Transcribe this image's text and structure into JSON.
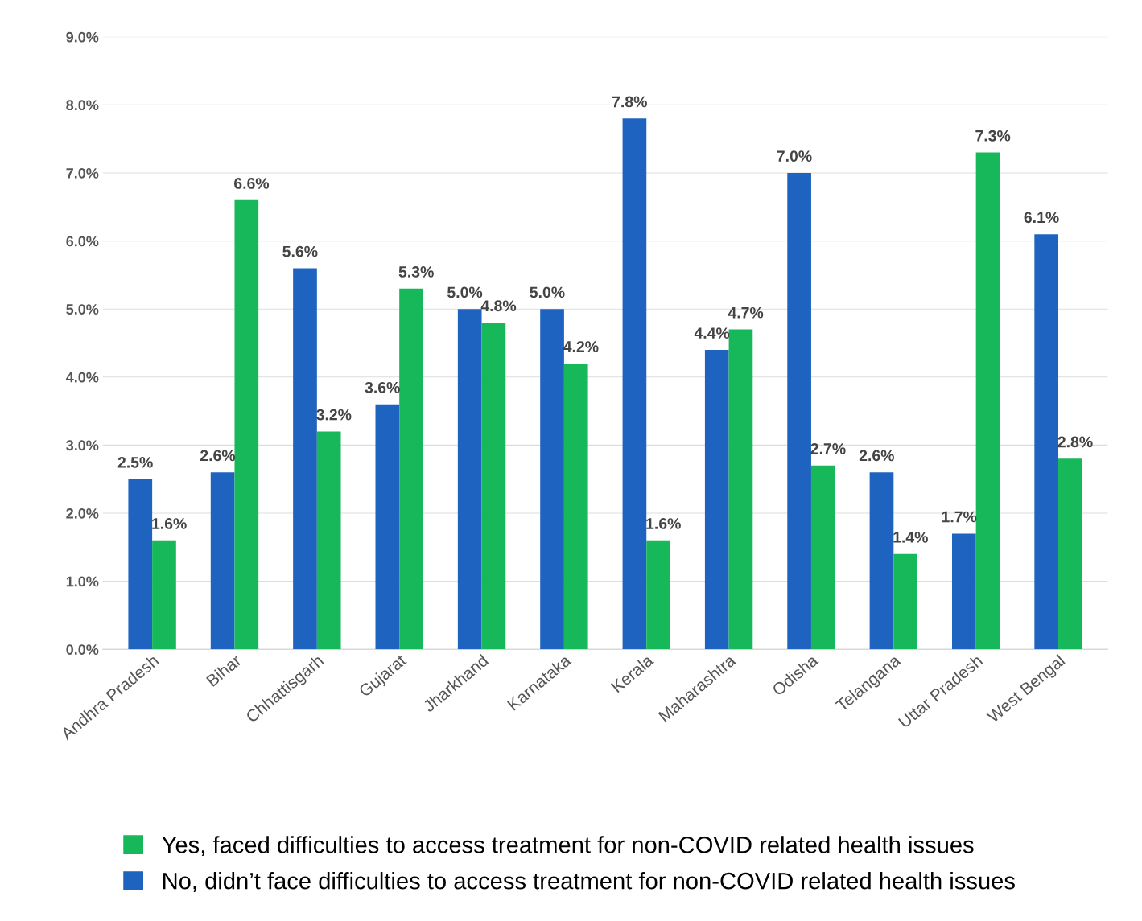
{
  "chart_data": {
    "type": "bar",
    "categories": [
      "Andhra Pradesh",
      "Bihar",
      "Chhattisgarh",
      "Gujarat",
      "Jharkhand",
      "Karnataka",
      "Kerala",
      "Maharashtra",
      "Odisha",
      "Telangana",
      "Uttar Pradesh",
      "West Bengal"
    ],
    "series": [
      {
        "name": "No, didn’t face difficulties to access treatment for non-COVID related health issues",
        "color": "#1f63c0",
        "values": [
          2.5,
          2.6,
          5.6,
          3.6,
          5.0,
          5.0,
          7.8,
          4.4,
          7.0,
          2.6,
          1.7,
          6.1
        ],
        "value_labels": [
          "2.5%",
          "2.6%",
          "5.6%",
          "3.6%",
          "5.0%",
          "5.0%",
          "7.8%",
          "4.4%",
          "7.0%",
          "2.6%",
          "1.7%",
          "6.1%"
        ]
      },
      {
        "name": "Yes, faced difficulties to access treatment for non-COVID related health issues",
        "color": "#16b85a",
        "values": [
          1.6,
          6.6,
          3.2,
          5.3,
          4.8,
          4.2,
          1.6,
          4.7,
          2.7,
          1.4,
          7.3,
          2.8
        ],
        "value_labels": [
          "1.6%",
          "6.6%",
          "3.2%",
          "5.3%",
          "4.8%",
          "4.2%",
          "1.6%",
          "4.7%",
          "2.7%",
          "1.4%",
          "7.3%",
          "2.8%"
        ]
      }
    ],
    "ylim": [
      0,
      9
    ],
    "yticks": [
      {
        "value": 0,
        "label": "0.0%"
      },
      {
        "value": 1,
        "label": "1.0%"
      },
      {
        "value": 2,
        "label": "2.0%"
      },
      {
        "value": 3,
        "label": "3.0%"
      },
      {
        "value": 4,
        "label": "4.0%"
      },
      {
        "value": 5,
        "label": "5.0%"
      },
      {
        "value": 6,
        "label": "6.0%"
      },
      {
        "value": 7,
        "label": "7.0%"
      },
      {
        "value": 8,
        "label": "8.0%"
      },
      {
        "value": 9,
        "label": "9.0%"
      }
    ],
    "grid": "y",
    "legend": "bottom"
  }
}
